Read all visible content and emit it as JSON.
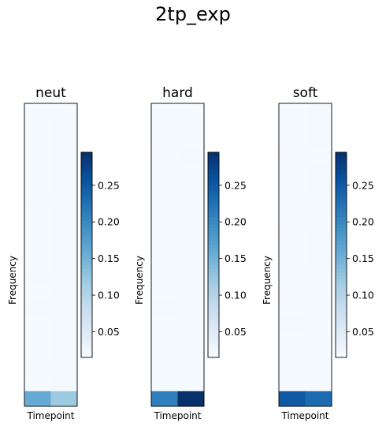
{
  "title": "2tp_exp",
  "colormap": "Blues",
  "chart_data": [
    {
      "type": "heatmap",
      "title": "neut",
      "xlabel": "Timepoint",
      "ylabel": "Frequency",
      "rows": 20,
      "cols": 2,
      "values": [
        [
          0.018,
          0.018
        ],
        [
          0.018,
          0.019
        ],
        [
          0.018,
          0.02
        ],
        [
          0.018,
          0.02
        ],
        [
          0.018,
          0.019
        ],
        [
          0.018,
          0.019
        ],
        [
          0.019,
          0.019
        ],
        [
          0.018,
          0.019
        ],
        [
          0.018,
          0.019
        ],
        [
          0.018,
          0.019
        ],
        [
          0.018,
          0.019
        ],
        [
          0.019,
          0.02
        ],
        [
          0.018,
          0.019
        ],
        [
          0.019,
          0.019
        ],
        [
          0.018,
          0.019
        ],
        [
          0.018,
          0.019
        ],
        [
          0.018,
          0.019
        ],
        [
          0.019,
          0.019
        ],
        [
          0.018,
          0.019
        ],
        [
          0.16,
          0.12
        ]
      ],
      "colorbar": {
        "ticks": [
          0.05,
          0.1,
          0.15,
          0.2,
          0.25
        ],
        "tick_labels": [
          "0.05",
          "0.10",
          "0.15",
          "0.20",
          "0.25"
        ],
        "range": [
          0.015,
          0.295
        ]
      }
    },
    {
      "type": "heatmap",
      "title": "hard",
      "xlabel": "Timepoint",
      "ylabel": "Frequency",
      "rows": 20,
      "cols": 2,
      "values": [
        [
          0.018,
          0.018
        ],
        [
          0.018,
          0.018
        ],
        [
          0.018,
          0.018
        ],
        [
          0.018,
          0.02
        ],
        [
          0.018,
          0.018
        ],
        [
          0.018,
          0.018
        ],
        [
          0.018,
          0.018
        ],
        [
          0.019,
          0.018
        ],
        [
          0.018,
          0.018
        ],
        [
          0.018,
          0.018
        ],
        [
          0.019,
          0.018
        ],
        [
          0.018,
          0.018
        ],
        [
          0.018,
          0.018
        ],
        [
          0.019,
          0.018
        ],
        [
          0.018,
          0.018
        ],
        [
          0.018,
          0.018
        ],
        [
          0.018,
          0.018
        ],
        [
          0.018,
          0.018
        ],
        [
          0.018,
          0.018
        ],
        [
          0.21,
          0.295
        ]
      ],
      "colorbar": {
        "ticks": [
          0.05,
          0.1,
          0.15,
          0.2,
          0.25
        ],
        "tick_labels": [
          "0.05",
          "0.10",
          "0.15",
          "0.20",
          "0.25"
        ],
        "range": [
          0.015,
          0.295
        ]
      }
    },
    {
      "type": "heatmap",
      "title": "soft",
      "xlabel": "Timepoint",
      "ylabel": "Frequency",
      "rows": 20,
      "cols": 2,
      "values": [
        [
          0.018,
          0.019
        ],
        [
          0.018,
          0.019
        ],
        [
          0.018,
          0.019
        ],
        [
          0.018,
          0.018
        ],
        [
          0.018,
          0.019
        ],
        [
          0.018,
          0.019
        ],
        [
          0.018,
          0.018
        ],
        [
          0.018,
          0.018
        ],
        [
          0.018,
          0.019
        ],
        [
          0.018,
          0.019
        ],
        [
          0.018,
          0.019
        ],
        [
          0.018,
          0.018
        ],
        [
          0.018,
          0.018
        ],
        [
          0.018,
          0.018
        ],
        [
          0.019,
          0.018
        ],
        [
          0.018,
          0.018
        ],
        [
          0.018,
          0.018
        ],
        [
          0.018,
          0.018
        ],
        [
          0.018,
          0.018
        ],
        [
          0.25,
          0.23
        ]
      ],
      "colorbar": {
        "ticks": [
          0.05,
          0.1,
          0.15,
          0.2,
          0.25
        ],
        "tick_labels": [
          "0.05",
          "0.10",
          "0.15",
          "0.20",
          "0.25"
        ],
        "range": [
          0.015,
          0.295
        ]
      }
    }
  ]
}
